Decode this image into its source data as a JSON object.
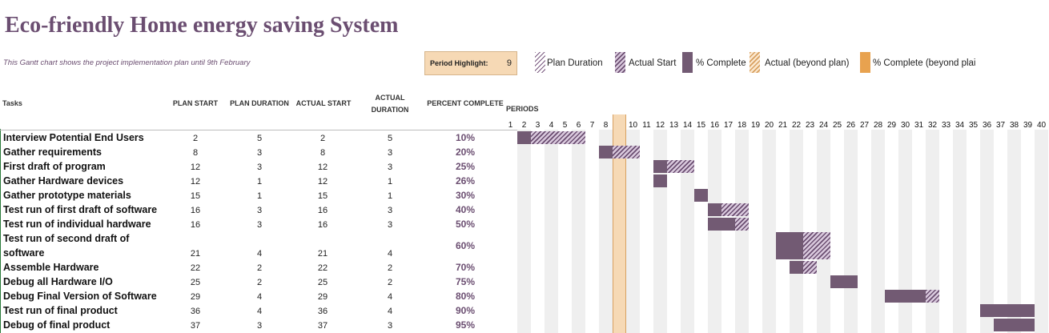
{
  "title": "Eco-friendly Home energy saving System",
  "subtitle": "This Gantt chart shows the project implementation plan until 9th February",
  "period_highlight": {
    "label": "Period Highlight:",
    "value": "9"
  },
  "legend": [
    {
      "label": "Plan Duration",
      "style": "hatch-plan",
      "icon": "plan-duration-swatch"
    },
    {
      "label": "Actual Start",
      "style": "hatch-actual",
      "icon": "actual-start-swatch"
    },
    {
      "label": "% Complete",
      "style": "solid-complete",
      "icon": "percent-complete-swatch"
    },
    {
      "label": "Actual (beyond plan)",
      "style": "hatch-beyond",
      "icon": "actual-beyond-swatch"
    },
    {
      "label": "% Complete (beyond plai",
      "style": "solid-beyond",
      "icon": "percent-complete-beyond-swatch"
    }
  ],
  "columns": {
    "tasks": "Tasks",
    "plan_start": "PLAN START",
    "plan_duration": "PLAN DURATION",
    "actual_start": "ACTUAL START",
    "actual_duration_1": "ACTUAL",
    "actual_duration_2": "DURATION",
    "percent_complete": "PERCENT COMPLETE",
    "periods": "PERIODS"
  },
  "colors": {
    "title": "#6b4e71",
    "complete": "#725a73",
    "highlight": "#f6d9b5",
    "highlight_border": "#d8a060",
    "weekend_shade": "#efefef"
  },
  "chart_data": {
    "type": "gantt",
    "highlight_period": 9,
    "periods": [
      1,
      2,
      3,
      4,
      5,
      6,
      7,
      8,
      9,
      10,
      11,
      12,
      13,
      14,
      15,
      16,
      17,
      18,
      19,
      20,
      21,
      22,
      23,
      24,
      25,
      26,
      27,
      28,
      29,
      30,
      31,
      32,
      33,
      34,
      35,
      36,
      37,
      38,
      39,
      40
    ],
    "tasks": [
      {
        "name": "Interview Potential End Users",
        "plan_start": 2,
        "plan_duration": 5,
        "actual_start": 2,
        "actual_duration": 5,
        "percent": "10%"
      },
      {
        "name": "Gather requirements",
        "plan_start": 8,
        "plan_duration": 3,
        "actual_start": 8,
        "actual_duration": 3,
        "percent": "20%"
      },
      {
        "name": "First draft of program",
        "plan_start": 12,
        "plan_duration": 3,
        "actual_start": 12,
        "actual_duration": 3,
        "percent": "25%"
      },
      {
        "name": "Gather Hardware devices",
        "plan_start": 12,
        "plan_duration": 1,
        "actual_start": 12,
        "actual_duration": 1,
        "percent": "26%"
      },
      {
        "name": "Gather prototype materials",
        "plan_start": 15,
        "plan_duration": 1,
        "actual_start": 15,
        "actual_duration": 1,
        "percent": "30%"
      },
      {
        "name": "Test run of first draft of software",
        "plan_start": 16,
        "plan_duration": 3,
        "actual_start": 16,
        "actual_duration": 3,
        "percent": "40%"
      },
      {
        "name": "Test run of individual hardware",
        "plan_start": 16,
        "plan_duration": 3,
        "actual_start": 16,
        "actual_duration": 3,
        "percent": "50%"
      },
      {
        "name": "Test run of second draft of software",
        "line1": "Test run of second draft of",
        "line2": "software",
        "plan_start": 21,
        "plan_duration": 4,
        "actual_start": 21,
        "actual_duration": 4,
        "percent": "60%"
      },
      {
        "name": "Assemble Hardware",
        "plan_start": 22,
        "plan_duration": 2,
        "actual_start": 22,
        "actual_duration": 2,
        "percent": "70%"
      },
      {
        "name": "Debug all Hardware I/O",
        "plan_start": 25,
        "plan_duration": 2,
        "actual_start": 25,
        "actual_duration": 2,
        "percent": "75%"
      },
      {
        "name": "Debug Final Version of  Software",
        "plan_start": 29,
        "plan_duration": 4,
        "actual_start": 29,
        "actual_duration": 4,
        "percent": "80%"
      },
      {
        "name": "Test run of final product",
        "plan_start": 36,
        "plan_duration": 4,
        "actual_start": 36,
        "actual_duration": 4,
        "percent": "90%"
      },
      {
        "name": "Debug of final product",
        "plan_start": 37,
        "plan_duration": 3,
        "actual_start": 37,
        "actual_duration": 3,
        "percent": "95%"
      }
    ]
  }
}
